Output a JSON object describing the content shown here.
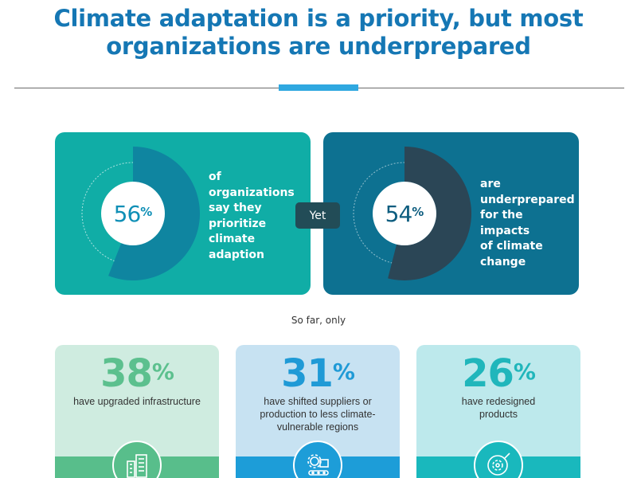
{
  "header": {
    "title_line1": "Climate adaptation is a priority, but most",
    "title_line2": "organizations are underprepared"
  },
  "top_stats": [
    {
      "value": "56",
      "unit": "%",
      "fraction": 0.56,
      "text_lines": [
        "of",
        "organizations",
        "say they",
        "prioritize",
        "climate",
        "adaption"
      ],
      "card_color": "#10ada6",
      "arc_color": "#0f85a0"
    },
    {
      "value": "54",
      "unit": "%",
      "fraction": 0.54,
      "text_lines": [
        "are",
        "underprepared",
        "for the impacts",
        "of climate",
        "change"
      ],
      "card_color": "#0d7191",
      "arc_color": "#2b4656"
    }
  ],
  "connector": {
    "label": "Yet"
  },
  "subheading": "So far, only",
  "bottom_stats": [
    {
      "value": "38",
      "unit": "%",
      "text_lines": [
        "have upgraded infrastructure"
      ],
      "icon": "buildings-icon",
      "color": "#58be8b"
    },
    {
      "value": "31",
      "unit": "%",
      "text_lines": [
        "have shifted suppliers or",
        "production to less climate-",
        "vulnerable regions"
      ],
      "icon": "supply-chain-gear-icon",
      "color": "#1d9dd8"
    },
    {
      "value": "26",
      "unit": "%",
      "text_lines": [
        "have redesigned",
        "products"
      ],
      "icon": "product-redesign-icon",
      "color": "#19b8bd"
    }
  ]
}
